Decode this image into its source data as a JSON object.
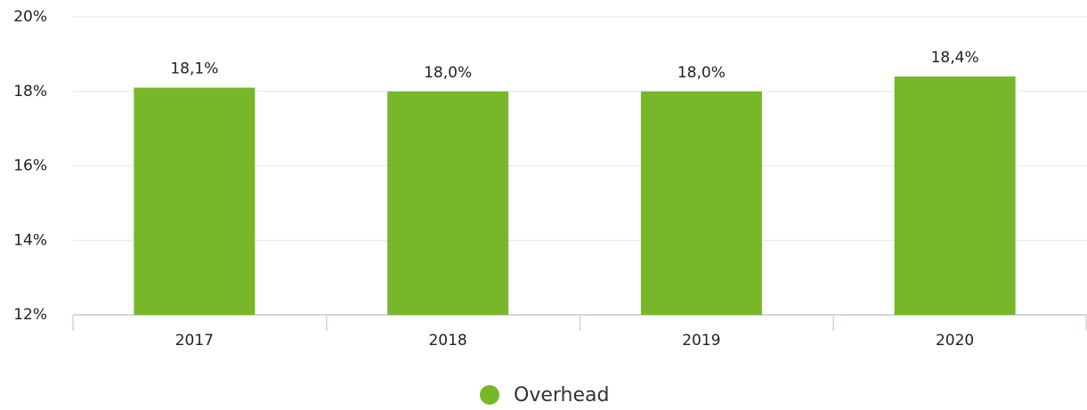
{
  "chart_data": {
    "type": "bar",
    "categories": [
      "2017",
      "2018",
      "2019",
      "2020"
    ],
    "series": [
      {
        "name": "Overhead",
        "color": "#78b72a",
        "values": [
          18.1,
          18.0,
          18.0,
          18.4
        ],
        "value_labels": [
          "18,1%",
          "18,0%",
          "18,0%",
          "18,4%"
        ]
      }
    ],
    "ylim": [
      12,
      20
    ],
    "yticks": [
      {
        "value": 12,
        "label": "12%"
      },
      {
        "value": 14,
        "label": "14%"
      },
      {
        "value": 16,
        "label": "16%"
      },
      {
        "value": 18,
        "label": "18%"
      },
      {
        "value": 20,
        "label": "20%"
      }
    ],
    "grid": true
  }
}
